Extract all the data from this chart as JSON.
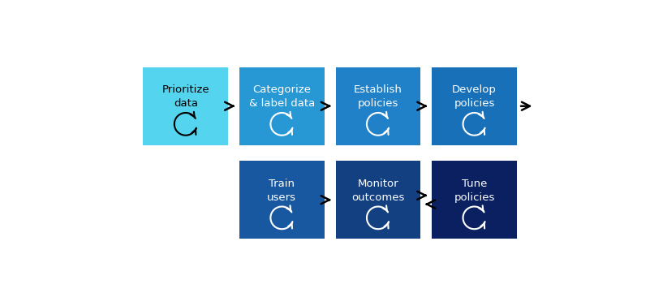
{
  "background_color": "#ffffff",
  "row1_boxes": [
    {
      "label": "Prioritize\ndata",
      "color": "#55D4F0",
      "text_color": "#000000"
    },
    {
      "label": "Categorize\n& label data",
      "color": "#2898D5",
      "text_color": "#ffffff"
    },
    {
      "label": "Establish\npolicies",
      "color": "#2080C8",
      "text_color": "#ffffff"
    },
    {
      "label": "Develop\npolicies",
      "color": "#1870B8",
      "text_color": "#ffffff"
    }
  ],
  "row2_boxes": [
    {
      "label": "Train\nusers",
      "color": "#1858A0",
      "text_color": "#ffffff"
    },
    {
      "label": "Monitor\noutcomes",
      "color": "#124080",
      "text_color": "#ffffff"
    },
    {
      "label": "Tune\npolicies",
      "color": "#0A2060",
      "text_color": "#ffffff"
    }
  ],
  "arrow_color": "#000000",
  "font_size": 9.5,
  "figsize": [
    8.01,
    3.61
  ],
  "dpi": 100
}
